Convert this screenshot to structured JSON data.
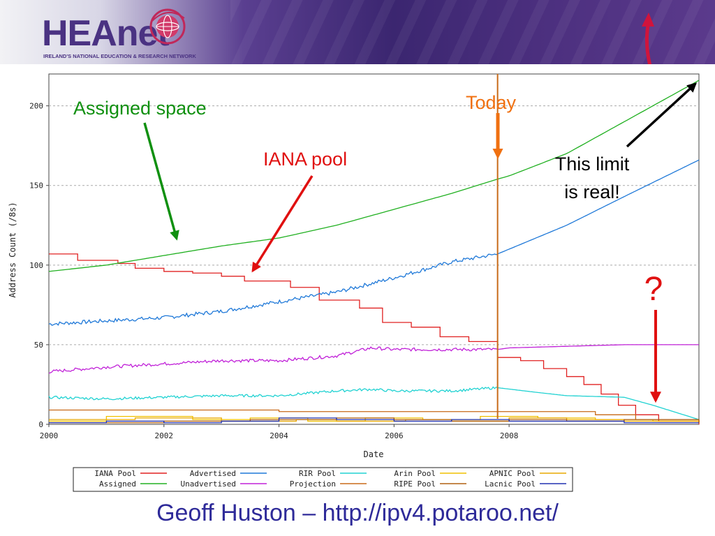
{
  "banner": {
    "logo_text": "HEAnet",
    "tagline": "IRELAND'S NATIONAL EDUCATION & RESEARCH NETWORK"
  },
  "footer": "Geoff Huston – http://ipv4.potaroo.net/",
  "colors": {
    "iana": "#e02020",
    "advertised": "#1e78d8",
    "rir": "#20d2d2",
    "arin": "#f0c000",
    "apnic": "#e8a800",
    "assigned": "#20b020",
    "unadvertised": "#c020d8",
    "projection": "#c86a18",
    "ripe": "#b06010",
    "lacnic": "#2030b0",
    "annotation_green": "#109010",
    "annotation_red": "#e01010",
    "annotation_orange": "#f07010"
  },
  "annotations": {
    "assigned_space": "Assigned space",
    "iana_pool": "IANA pool",
    "today": "Today",
    "limit_line1": "This limit",
    "limit_line2": "is real!",
    "question": "?"
  },
  "chart_data": {
    "type": "line",
    "xlabel": "Date",
    "ylabel": "Address Count (/8s)",
    "xlim": [
      2000,
      2011.3
    ],
    "ylim": [
      0,
      220
    ],
    "x_ticks": [
      2000,
      2002,
      2004,
      2006,
      2008
    ],
    "y_ticks": [
      0,
      50,
      100,
      150,
      200
    ],
    "today": 2007.8,
    "grid": "dashed horizontal",
    "legend_position": "bottom",
    "series": [
      {
        "name": "IANA Pool",
        "color": "#e02020",
        "step": true,
        "points": [
          [
            2000,
            107
          ],
          [
            2000.5,
            103
          ],
          [
            2001.2,
            101
          ],
          [
            2001.5,
            98
          ],
          [
            2002.0,
            96
          ],
          [
            2002.5,
            95
          ],
          [
            2003.0,
            93
          ],
          [
            2003.4,
            90
          ],
          [
            2004.2,
            86
          ],
          [
            2004.7,
            78
          ],
          [
            2005.4,
            73
          ],
          [
            2005.8,
            64
          ],
          [
            2006.3,
            61
          ],
          [
            2006.8,
            55
          ],
          [
            2007.3,
            52
          ],
          [
            2007.8,
            42
          ],
          [
            2008.2,
            40
          ],
          [
            2008.6,
            35
          ],
          [
            2009.0,
            30
          ],
          [
            2009.3,
            25
          ],
          [
            2009.6,
            19
          ],
          [
            2009.9,
            12
          ],
          [
            2010.2,
            6
          ],
          [
            2010.6,
            2
          ],
          [
            2011.3,
            0
          ]
        ]
      },
      {
        "name": "Assigned",
        "color": "#20b020",
        "points": [
          [
            2000,
            96
          ],
          [
            2001,
            100
          ],
          [
            2002,
            106
          ],
          [
            2003,
            112
          ],
          [
            2004,
            117
          ],
          [
            2005,
            125
          ],
          [
            2006,
            135
          ],
          [
            2007,
            145
          ],
          [
            2007.8,
            154
          ],
          [
            2008,
            156
          ],
          [
            2009,
            170
          ],
          [
            2010,
            190
          ],
          [
            2011.3,
            216
          ]
        ]
      },
      {
        "name": "Advertised",
        "color": "#1e78d8",
        "noise": 1.2,
        "points": [
          [
            2000,
            63
          ],
          [
            2001,
            65
          ],
          [
            2002,
            67
          ],
          [
            2003,
            71
          ],
          [
            2004,
            77
          ],
          [
            2005,
            83
          ],
          [
            2006,
            92
          ],
          [
            2007,
            102
          ],
          [
            2007.8,
            107
          ],
          [
            2008,
            110
          ],
          [
            2009,
            125
          ],
          [
            2010,
            143
          ],
          [
            2011.3,
            166
          ]
        ]
      },
      {
        "name": "Unadvertised",
        "color": "#c020d8",
        "noise": 1.0,
        "points": [
          [
            2000,
            33
          ],
          [
            2001,
            36
          ],
          [
            2002,
            38
          ],
          [
            2003,
            40
          ],
          [
            2004,
            40
          ],
          [
            2005,
            43
          ],
          [
            2005.6,
            48
          ],
          [
            2006,
            47
          ],
          [
            2007,
            47
          ],
          [
            2007.8,
            47
          ],
          [
            2008,
            48
          ],
          [
            2009,
            49
          ],
          [
            2010,
            50
          ],
          [
            2011.3,
            50
          ]
        ]
      },
      {
        "name": "RIR Pool",
        "color": "#20d2d2",
        "noise": 0.8,
        "points": [
          [
            2000,
            17
          ],
          [
            2001,
            16
          ],
          [
            2002,
            17
          ],
          [
            2003,
            18
          ],
          [
            2004,
            18
          ],
          [
            2005,
            21
          ],
          [
            2005.6,
            22
          ],
          [
            2006,
            21
          ],
          [
            2007,
            21
          ],
          [
            2007.8,
            23
          ],
          [
            2008.5,
            20
          ],
          [
            2009,
            18
          ],
          [
            2010,
            17
          ],
          [
            2010.5,
            12
          ],
          [
            2011.3,
            3
          ]
        ]
      },
      {
        "name": "Projection",
        "color": "#c86a18",
        "step": true,
        "points": [
          [
            2000,
            9
          ],
          [
            2002,
            9
          ],
          [
            2004,
            8
          ],
          [
            2006,
            8
          ],
          [
            2008,
            8
          ],
          [
            2009.5,
            6
          ],
          [
            2010.2,
            3
          ],
          [
            2011.3,
            2
          ]
        ]
      },
      {
        "name": "Arin Pool",
        "color": "#f0c000",
        "step": true,
        "points": [
          [
            2000,
            2
          ],
          [
            2001,
            5
          ],
          [
            2002.5,
            3
          ],
          [
            2003.5,
            4
          ],
          [
            2004.5,
            2
          ],
          [
            2005.5,
            4
          ],
          [
            2006.5,
            3
          ],
          [
            2007.5,
            5
          ],
          [
            2008.5,
            4
          ],
          [
            2009.5,
            3
          ],
          [
            2010.5,
            2
          ],
          [
            2011.3,
            1
          ]
        ]
      },
      {
        "name": "APNIC Pool",
        "color": "#e8a800",
        "step": true,
        "points": [
          [
            2000,
            3
          ],
          [
            2001.5,
            4
          ],
          [
            2003,
            2
          ],
          [
            2004.3,
            3
          ],
          [
            2005,
            2
          ],
          [
            2006.2,
            3
          ],
          [
            2007,
            2
          ],
          [
            2008,
            4
          ],
          [
            2009,
            3
          ],
          [
            2010,
            2
          ],
          [
            2011.3,
            1
          ]
        ]
      },
      {
        "name": "RIPE Pool",
        "color": "#b06010",
        "step": true,
        "points": [
          [
            2000,
            1
          ],
          [
            2002,
            2
          ],
          [
            2003.5,
            3
          ],
          [
            2005,
            4
          ],
          [
            2006,
            3
          ],
          [
            2007,
            2
          ],
          [
            2008,
            3
          ],
          [
            2009,
            2
          ],
          [
            2010,
            3
          ],
          [
            2011.3,
            1
          ]
        ]
      },
      {
        "name": "Lacnic Pool",
        "color": "#2030b0",
        "step": true,
        "points": [
          [
            2000,
            1
          ],
          [
            2001,
            2
          ],
          [
            2002,
            1
          ],
          [
            2003,
            2
          ],
          [
            2004,
            4
          ],
          [
            2005,
            3
          ],
          [
            2006,
            2
          ],
          [
            2007,
            3
          ],
          [
            2008,
            2
          ],
          [
            2009,
            2
          ],
          [
            2010,
            1
          ],
          [
            2011.3,
            1
          ]
        ]
      }
    ],
    "legend_rows": [
      [
        {
          "name": "IANA Pool",
          "color": "#e02020"
        },
        {
          "name": "Advertised",
          "color": "#1e78d8"
        },
        {
          "name": "RIR Pool",
          "color": "#20d2d2"
        },
        {
          "name": "Arin Pool",
          "color": "#f0c000"
        },
        {
          "name": "APNIC Pool",
          "color": "#e8a800"
        }
      ],
      [
        {
          "name": "Assigned",
          "color": "#20b020"
        },
        {
          "name": "Unadvertised",
          "color": "#c020d8"
        },
        {
          "name": "Projection",
          "color": "#c86a18"
        },
        {
          "name": "RIPE Pool",
          "color": "#b06010"
        },
        {
          "name": "Lacnic Pool",
          "color": "#2030b0"
        }
      ]
    ]
  }
}
